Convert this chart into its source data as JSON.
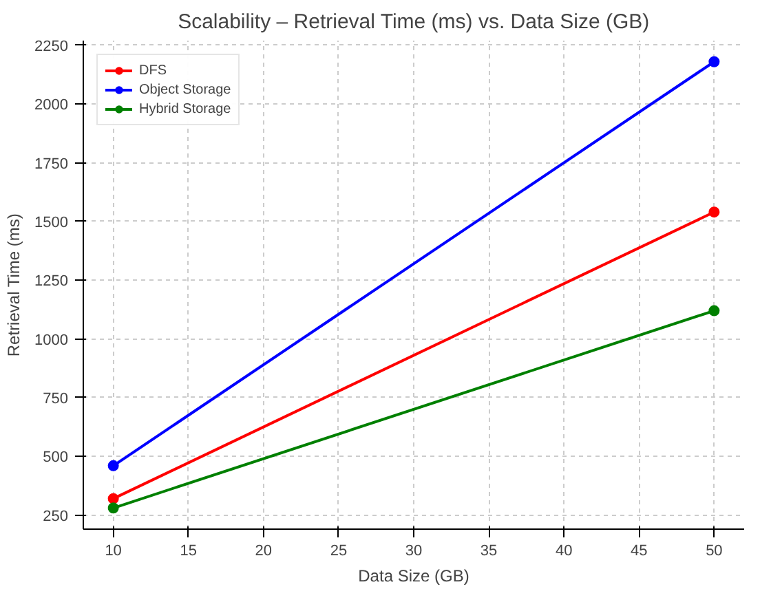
{
  "chart_data": {
    "type": "line",
    "title": "Scalability – Retrieval Time (ms) vs. Data Size (GB)",
    "xlabel": "Data Size (GB)",
    "ylabel": "Retrieval Time (ms)",
    "x": [
      10,
      50
    ],
    "series": [
      {
        "name": "DFS",
        "color": "#ff0000",
        "values": [
          320,
          1540
        ]
      },
      {
        "name": "Object Storage",
        "color": "#0000ff",
        "values": [
          460,
          2180
        ]
      },
      {
        "name": "Hybrid Storage",
        "color": "#008000",
        "values": [
          280,
          1120
        ]
      }
    ],
    "xlim": [
      8,
      52
    ],
    "ylim": [
      190,
      2270
    ],
    "xticks": [
      10,
      15,
      20,
      25,
      30,
      35,
      40,
      45,
      50
    ],
    "yticks": [
      250,
      500,
      750,
      1000,
      1250,
      1500,
      1750,
      2000,
      2250
    ],
    "grid": true,
    "legend": "top left",
    "marker": "circle",
    "line_style": "solid"
  }
}
